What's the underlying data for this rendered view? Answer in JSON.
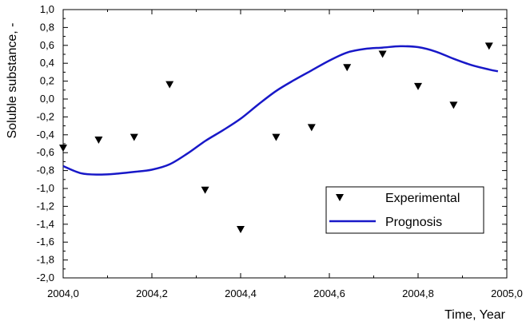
{
  "chart_data": {
    "type": "scatter",
    "xlabel": "Time, Year",
    "ylabel": "Soluble substance, -",
    "xlim": [
      2004.0,
      2005.0
    ],
    "ylim": [
      -2.0,
      1.0
    ],
    "x_ticks": [
      "2004,0",
      "2004,2",
      "2004,4",
      "2004,6",
      "2004,8",
      "2005,0"
    ],
    "y_ticks": [
      "1,0",
      "0,8",
      "0,6",
      "0,4",
      "0,2",
      "0,0",
      "-0,2",
      "-0,4",
      "-0,6",
      "-0,8",
      "-1,0",
      "-1,2",
      "-1,4",
      "-1,6",
      "-1,8",
      "-2,0"
    ],
    "legend_position": "center-right",
    "grid": false,
    "series": [
      {
        "name": "Experimental",
        "type": "scatter",
        "marker": "triangle-down",
        "color": "#000000",
        "points": [
          [
            2004.0,
            -0.55
          ],
          [
            2004.08,
            -0.46
          ],
          [
            2004.16,
            -0.43
          ],
          [
            2004.24,
            0.16
          ],
          [
            2004.32,
            -1.02
          ],
          [
            2004.4,
            -1.46
          ],
          [
            2004.48,
            -0.43
          ],
          [
            2004.56,
            -0.32
          ],
          [
            2004.64,
            0.35
          ],
          [
            2004.72,
            0.5
          ],
          [
            2004.8,
            0.14
          ],
          [
            2004.88,
            -0.07
          ],
          [
            2004.96,
            0.59
          ]
        ]
      },
      {
        "name": "Prognosis",
        "type": "line",
        "color": "#1818c8",
        "points": [
          [
            2004.0,
            -0.75
          ],
          [
            2004.04,
            -0.83
          ],
          [
            2004.08,
            -0.845
          ],
          [
            2004.12,
            -0.835
          ],
          [
            2004.16,
            -0.815
          ],
          [
            2004.2,
            -0.79
          ],
          [
            2004.24,
            -0.73
          ],
          [
            2004.28,
            -0.61
          ],
          [
            2004.32,
            -0.47
          ],
          [
            2004.36,
            -0.35
          ],
          [
            2004.4,
            -0.22
          ],
          [
            2004.44,
            -0.06
          ],
          [
            2004.48,
            0.09
          ],
          [
            2004.52,
            0.21
          ],
          [
            2004.56,
            0.32
          ],
          [
            2004.6,
            0.43
          ],
          [
            2004.64,
            0.52
          ],
          [
            2004.68,
            0.56
          ],
          [
            2004.72,
            0.575
          ],
          [
            2004.76,
            0.59
          ],
          [
            2004.8,
            0.58
          ],
          [
            2004.84,
            0.53
          ],
          [
            2004.88,
            0.45
          ],
          [
            2004.92,
            0.38
          ],
          [
            2004.96,
            0.33
          ],
          [
            2004.98,
            0.31
          ]
        ]
      }
    ]
  }
}
